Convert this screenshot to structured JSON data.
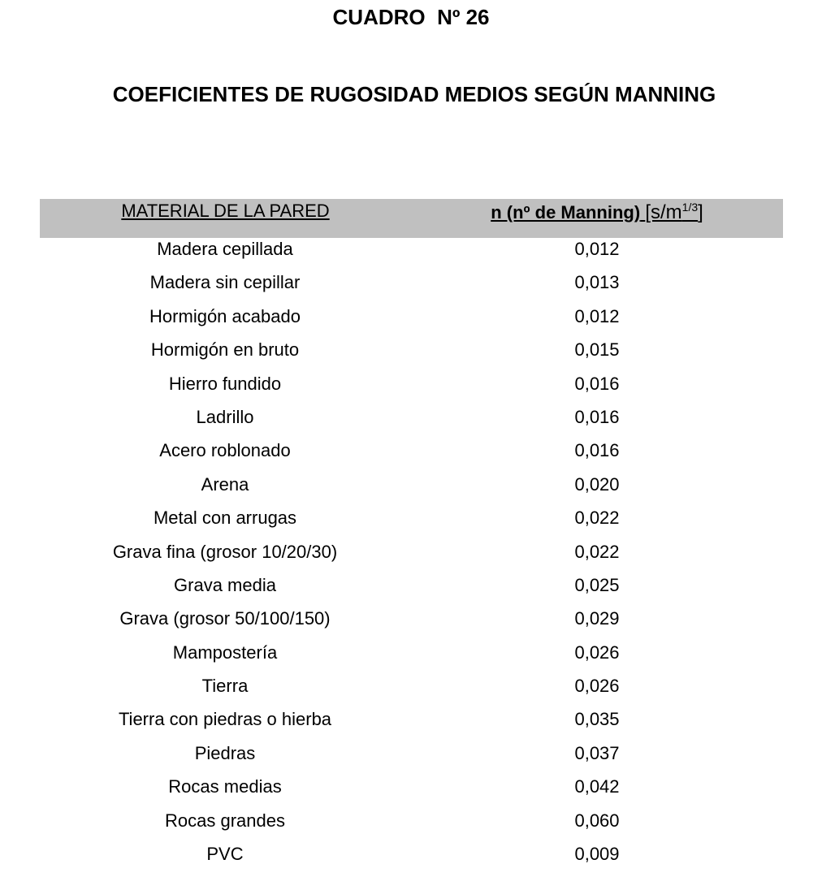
{
  "cuadro": "CUADRO  Nº 26",
  "title": "COEFICIENTES DE RUGOSIDAD MEDIOS SEGÚN MANNING",
  "table": {
    "header_material": "MATERIAL DE LA PARED",
    "header_n_bold": "n (nº de Manning)",
    "header_n_unit": "[s/m",
    "header_n_exp": "1/3",
    "header_n_close": "]",
    "rows": [
      {
        "material": "Madera cepillada",
        "n": "0,012"
      },
      {
        "material": "Madera sin cepillar",
        "n": "0,013"
      },
      {
        "material": "Hormigón acabado",
        "n": "0,012"
      },
      {
        "material": "Hormigón en bruto",
        "n": "0,015"
      },
      {
        "material": "Hierro fundido",
        "n": "0,016"
      },
      {
        "material": "Ladrillo",
        "n": "0,016"
      },
      {
        "material": "Acero roblonado",
        "n": "0,016"
      },
      {
        "material": "Arena",
        "n": "0,020"
      },
      {
        "material": "Metal con arrugas",
        "n": "0,022"
      },
      {
        "material": "Grava fina (grosor 10/20/30)",
        "n": "0,022"
      },
      {
        "material": "Grava media",
        "n": "0,025"
      },
      {
        "material": "Grava (grosor 50/100/150)",
        "n": "0,029"
      },
      {
        "material": "Mampostería",
        "n": "0,026"
      },
      {
        "material": "Tierra",
        "n": "0,026"
      },
      {
        "material": "Tierra con piedras o hierba",
        "n": "0,035"
      },
      {
        "material": "Piedras",
        "n": "0,037"
      },
      {
        "material": "Rocas medias",
        "n": "0,042"
      },
      {
        "material": "Rocas grandes",
        "n": "0,060"
      },
      {
        "material": "PVC",
        "n": "0,009"
      }
    ]
  },
  "colors": {
    "header_band": "#c0c0c0"
  }
}
